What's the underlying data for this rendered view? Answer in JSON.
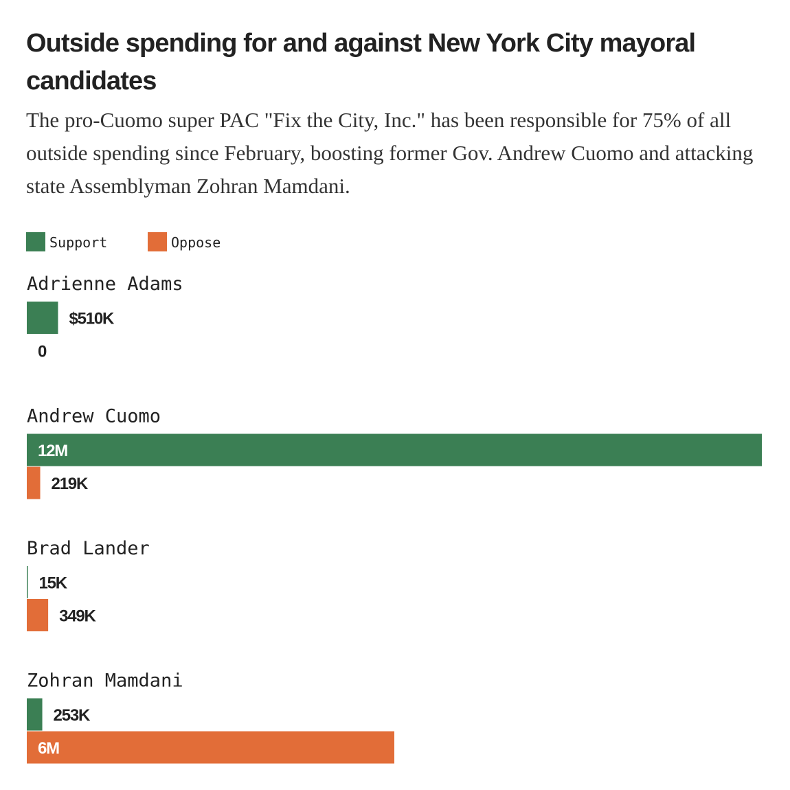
{
  "title": "Outside spending for and against New York City mayoral candidates",
  "subtitle": "The pro-Cuomo super PAC \"Fix the City, Inc.\" has been responsible for 75% of all outside spending since February, boosting former Gov. Andrew Cuomo and attacking state Assemblyman Zohran Mamdani.",
  "legend": {
    "support_label": "Support",
    "oppose_label": "Oppose"
  },
  "colors": {
    "support": "#3b7f54",
    "oppose": "#e26d38",
    "text": "#222222",
    "inside_label": "#ffffff"
  },
  "chart_data": {
    "type": "bar",
    "orientation": "horizontal",
    "title": "Outside spending for and against New York City mayoral candidates",
    "series_names": [
      "Support",
      "Oppose"
    ],
    "units": "USD",
    "xlim": [
      0,
      12000000
    ],
    "candidates": [
      {
        "name": "Adrienne Adams",
        "support": 510000,
        "support_label": "$510K",
        "oppose": 0,
        "oppose_label": "0"
      },
      {
        "name": "Andrew Cuomo",
        "support": 12000000,
        "support_label": "12M",
        "oppose": 219000,
        "oppose_label": "219K"
      },
      {
        "name": "Brad Lander",
        "support": 15000,
        "support_label": "15K",
        "oppose": 349000,
        "oppose_label": "349K"
      },
      {
        "name": "Zohran Mamdani",
        "support": 253000,
        "support_label": "253K",
        "oppose": 6000000,
        "oppose_label": "6M"
      }
    ]
  }
}
